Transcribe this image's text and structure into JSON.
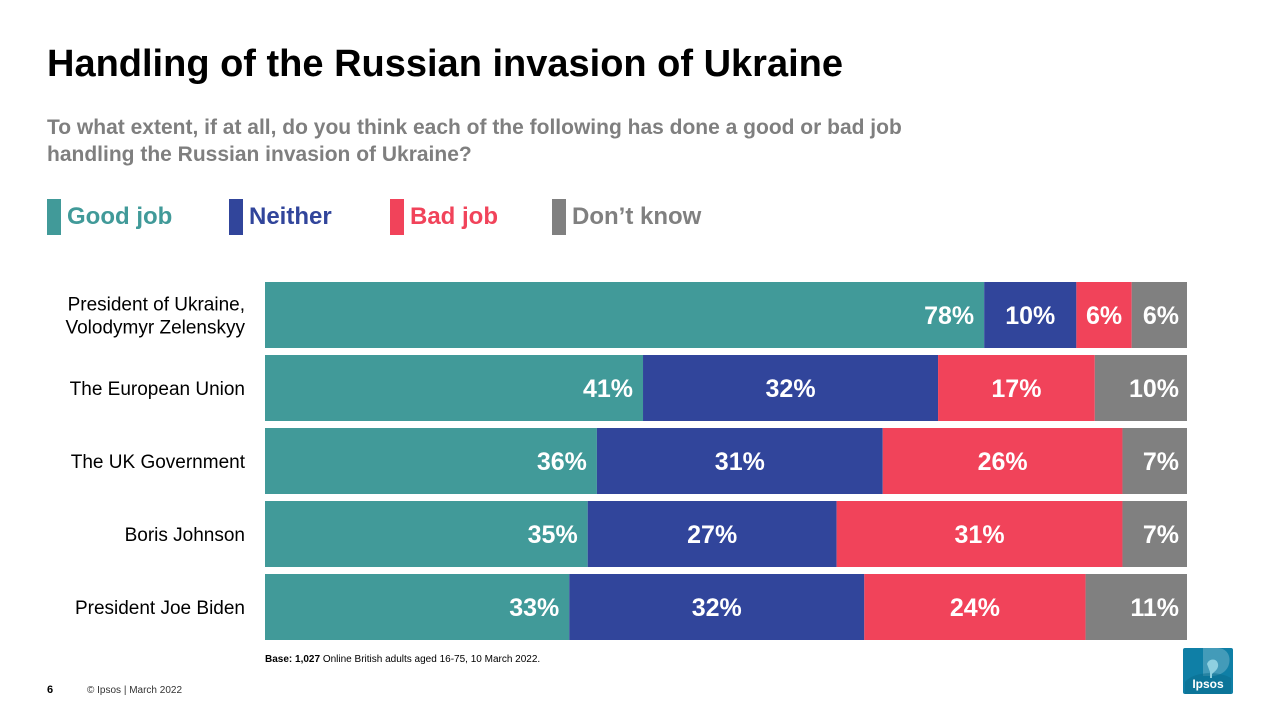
{
  "colors": {
    "good": "#419a99",
    "neither": "#31459b",
    "bad": "#f1435a",
    "dont_know": "#808080",
    "logo": "#0f7fa6"
  },
  "chart_data": {
    "type": "bar",
    "orientation": "horizontal",
    "stacked": true,
    "title": "Handling of the Russian invasion of Ukraine",
    "subtitle": "To what extent, if at all, do you think each of the following has done a good or bad job handling the Russian invasion of Ukraine?",
    "categories": [
      "President of Ukraine, Volodymyr Zelenskyy",
      "The European Union",
      "The UK Government",
      "Boris Johnson",
      "President Joe Biden"
    ],
    "category_lines": [
      [
        "President of Ukraine,",
        "Volodymyr Zelenskyy"
      ],
      [
        "The European Union"
      ],
      [
        "The UK Government"
      ],
      [
        "Boris Johnson"
      ],
      [
        "President Joe Biden"
      ]
    ],
    "series": [
      {
        "name": "Good job",
        "color": "#419a99",
        "values": [
          78,
          41,
          36,
          35,
          33
        ]
      },
      {
        "name": "Neither",
        "color": "#31459b",
        "values": [
          10,
          32,
          31,
          27,
          32
        ]
      },
      {
        "name": "Bad job",
        "color": "#f1435a",
        "values": [
          6,
          17,
          26,
          31,
          24
        ]
      },
      {
        "name": "Don’t know",
        "color": "#808080",
        "values": [
          6,
          10,
          7,
          7,
          11
        ]
      }
    ],
    "value_suffix": "%",
    "legend_position": "top-left",
    "grid": false
  },
  "legend": [
    {
      "label": "Good job",
      "color": "#419a99"
    },
    {
      "label": "Neither",
      "color": "#31459b"
    },
    {
      "label": "Bad job",
      "color": "#f1435a"
    },
    {
      "label": "Don’t know",
      "color": "#808080"
    }
  ],
  "footer": {
    "base_label": "Base:",
    "base_value": "1,027",
    "base_text": " Online British adults aged 16-75, 10 March 2022.",
    "page_number": "6",
    "copyright": "© Ipsos | March 2022",
    "logo_text": "Ipsos"
  }
}
